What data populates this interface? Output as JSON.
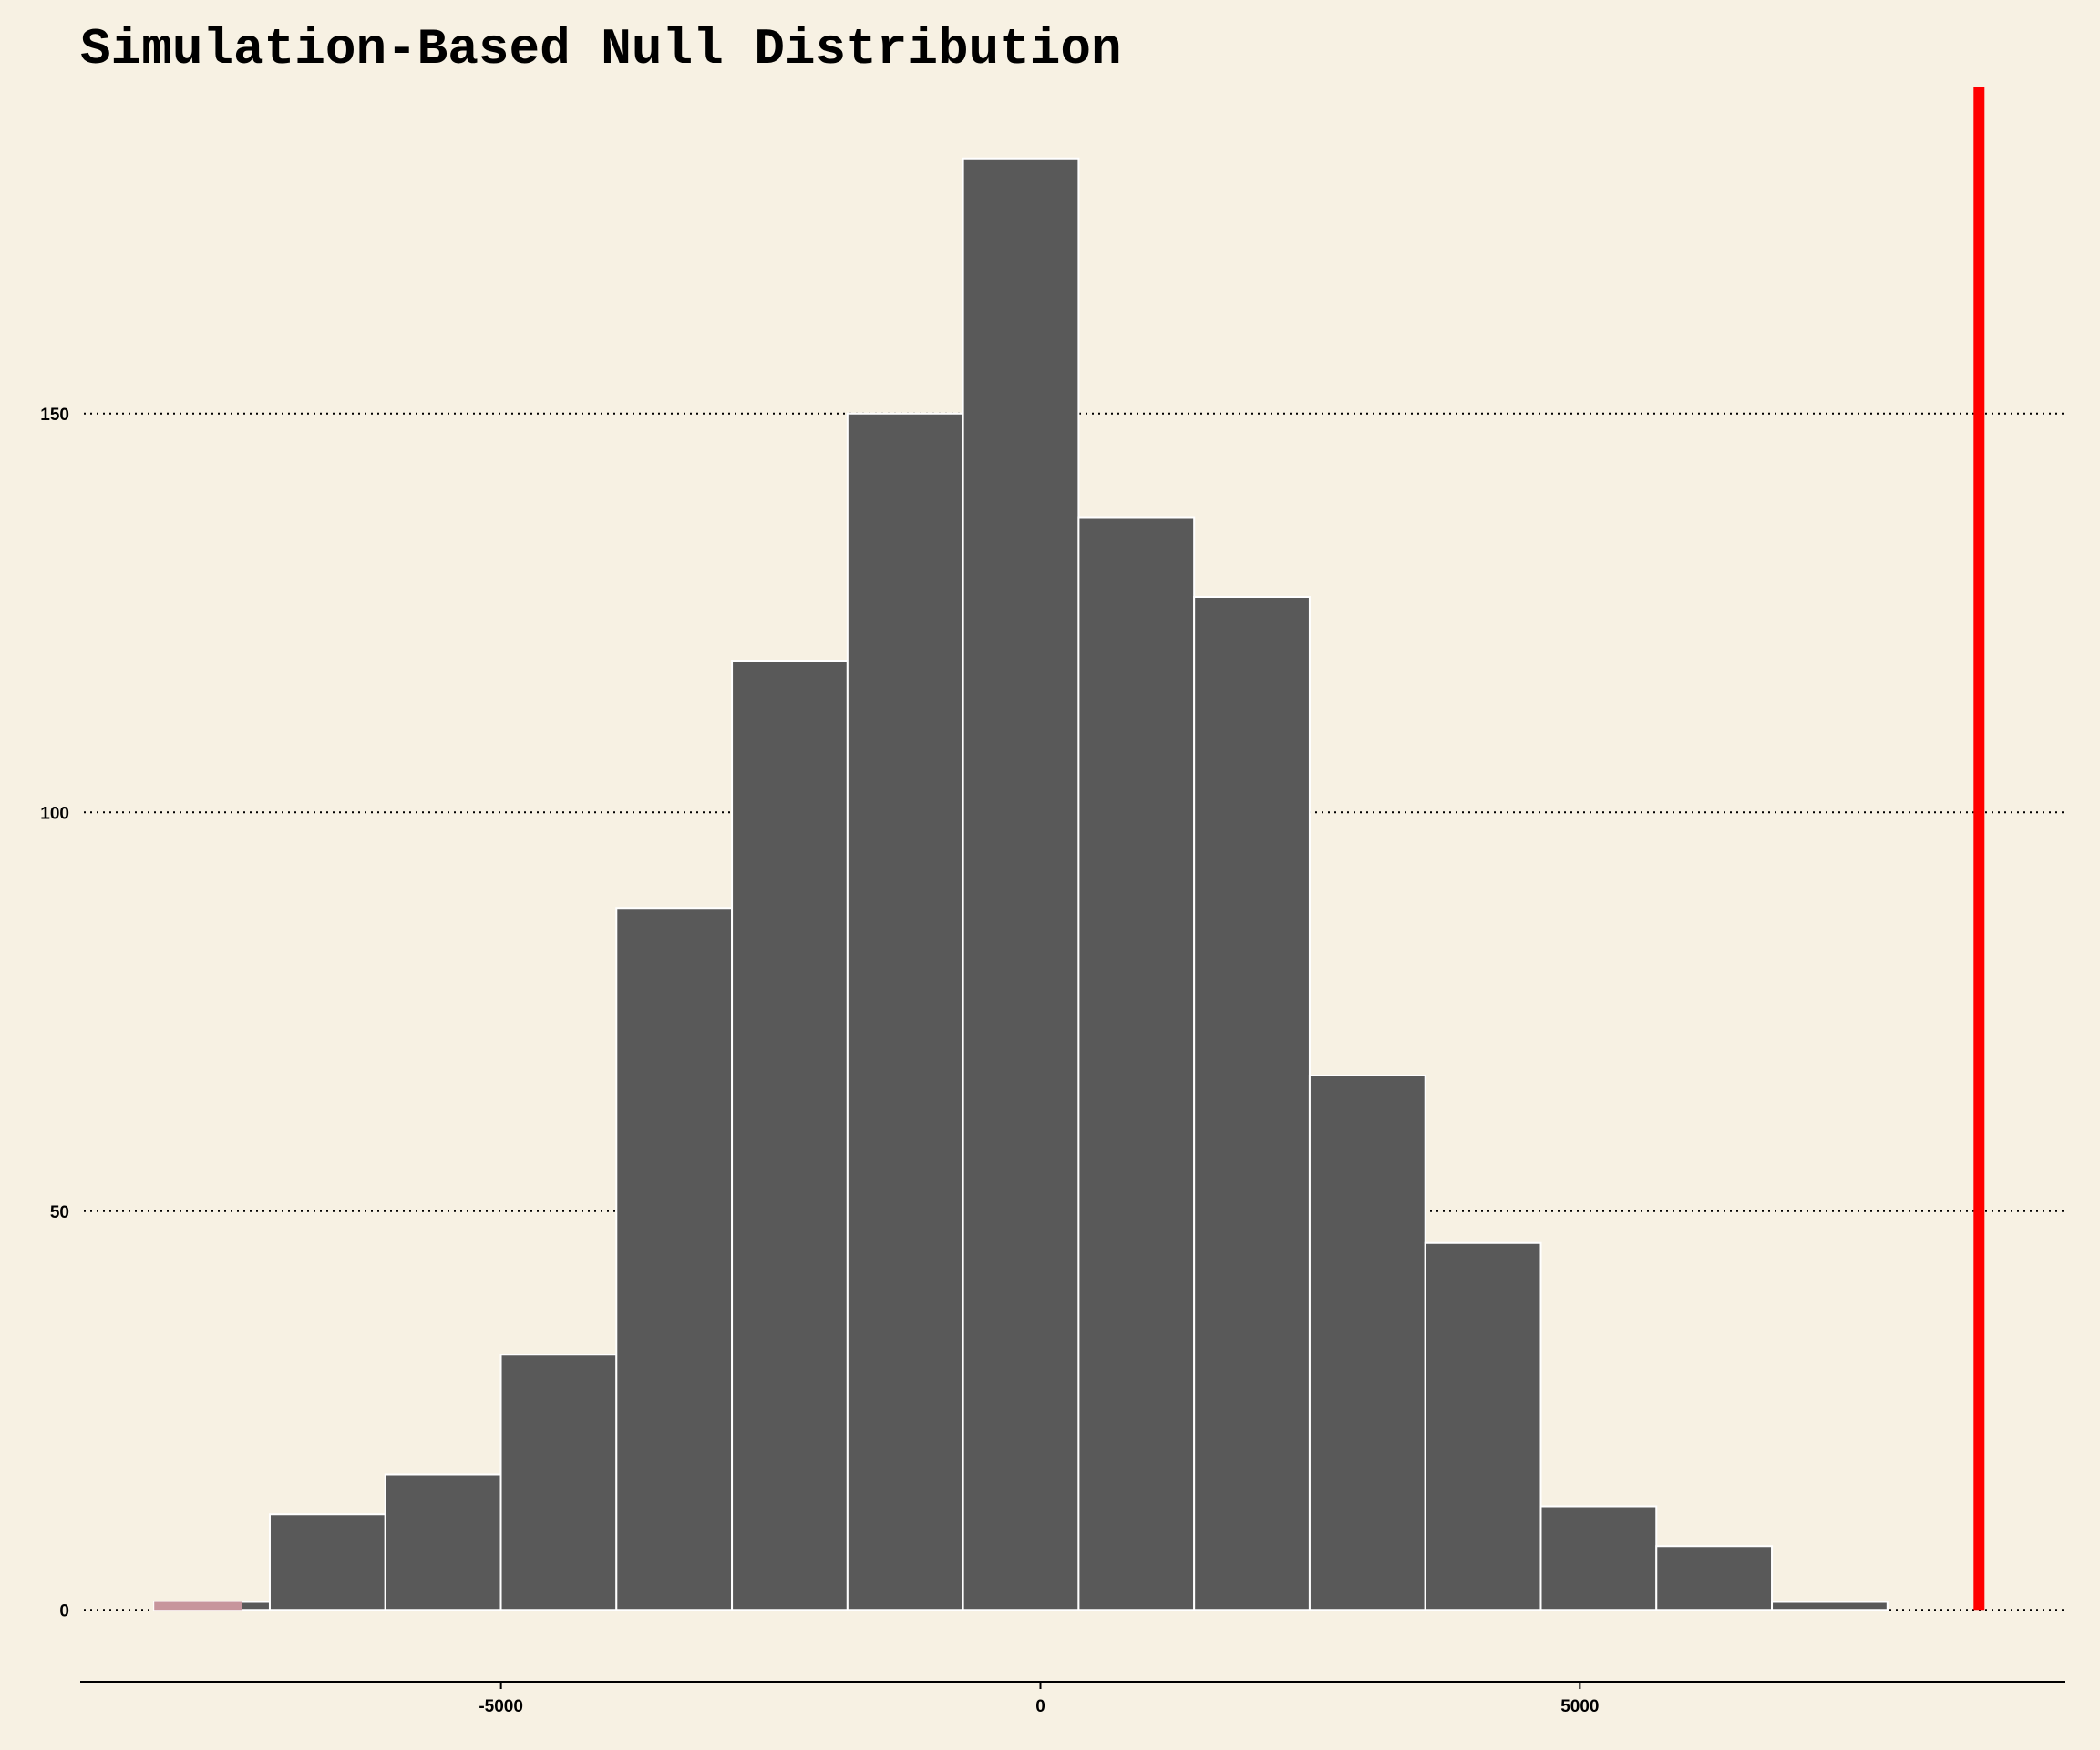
{
  "chart_data": {
    "type": "bar",
    "title": "Simulation-Based Null Distribution",
    "subtitle": "",
    "xlabel": "",
    "ylabel": "",
    "bin_width": 1071,
    "bins": [
      {
        "x0": -8214,
        "x1": -7143,
        "count": 1
      },
      {
        "x0": -7143,
        "x1": -6072,
        "count": 12
      },
      {
        "x0": -6072,
        "x1": -5001,
        "count": 17
      },
      {
        "x0": -5001,
        "x1": -3930,
        "count": 32
      },
      {
        "x0": -3930,
        "x1": -2859,
        "count": 88
      },
      {
        "x0": -2859,
        "x1": -1788,
        "count": 119
      },
      {
        "x0": -1788,
        "x1": -717,
        "count": 150
      },
      {
        "x0": -717,
        "x1": 354,
        "count": 182
      },
      {
        "x0": 354,
        "x1": 1425,
        "count": 137
      },
      {
        "x0": 1425,
        "x1": 2496,
        "count": 127
      },
      {
        "x0": 2496,
        "x1": 3567,
        "count": 67
      },
      {
        "x0": 3567,
        "x1": 4638,
        "count": 46
      },
      {
        "x0": 4638,
        "x1": 5709,
        "count": 13
      },
      {
        "x0": 5709,
        "x1": 6780,
        "count": 8
      },
      {
        "x0": 6780,
        "x1": 7851,
        "count": 1
      }
    ],
    "shaded_region": {
      "from": -8214,
      "to": -7400,
      "color": "#c7959c"
    },
    "observed_statistic": 8700,
    "x_ticks": [
      -5000,
      0,
      5000
    ],
    "x_tick_labels": [
      "-5000",
      "0",
      "5000"
    ],
    "y_ticks": [
      0,
      50,
      100,
      150
    ],
    "y_tick_labels": [
      "0",
      "50",
      "100",
      "150"
    ],
    "xlim": [
      -8900,
      9500
    ],
    "ylim": [
      -9,
      191
    ],
    "grid": {
      "horizontal": true,
      "style": "dotted"
    },
    "colors": {
      "background": "#f7f1e3",
      "bar_fill": "#595959",
      "bar_outline": "#ffffff",
      "observed_line": "#ff0000",
      "axis": "#000000"
    }
  }
}
